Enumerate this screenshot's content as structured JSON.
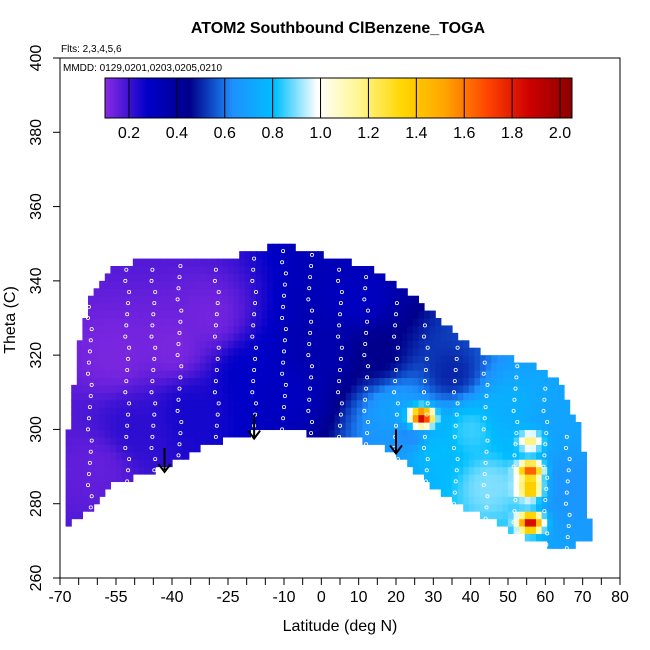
{
  "chart_data": {
    "type": "heatmap",
    "title": "ATOM2 Southbound ClBenzene_TOGA",
    "annotations": [
      "Flts: 2,3,4,5,6",
      "MMDD: 0129,0201,0203,0205,0210"
    ],
    "xlabel": "Latitude (deg N)",
    "ylabel": "Theta (C)",
    "xlim": [
      -70,
      80
    ],
    "ylim": [
      260,
      400
    ],
    "x_ticks": [
      -70,
      -55,
      -40,
      -25,
      -10,
      0,
      10,
      20,
      30,
      40,
      50,
      60,
      70,
      80
    ],
    "x_tick_labels": [
      "-70",
      "-55",
      "-40",
      "-25",
      "-10",
      "0",
      "10",
      "20",
      "30",
      "40",
      "50",
      "60",
      "70",
      "80"
    ],
    "y_ticks": [
      260,
      280,
      300,
      320,
      340,
      360,
      380,
      400
    ],
    "y_tick_labels": [
      "260",
      "280",
      "300",
      "320",
      "340",
      "360",
      "380",
      "400"
    ],
    "colorbar": {
      "range": [
        0.1,
        2.05
      ],
      "ticks": [
        0.2,
        0.4,
        0.6,
        0.8,
        1.0,
        1.2,
        1.4,
        1.6,
        1.8,
        2.0
      ],
      "tick_labels": [
        "0.2",
        "0.4",
        "0.6",
        "0.8",
        "1.0",
        "1.2",
        "1.4",
        "1.6",
        "1.8",
        "2.0"
      ],
      "colors": [
        "#8a2be2",
        "#0000c8",
        "#00008b",
        "#1e90ff",
        "#00bfff",
        "#ffffff",
        "#fff68f",
        "#ffd700",
        "#ffa500",
        "#ff4500",
        "#cd0000",
        "#8b0000"
      ]
    },
    "domain_boundary": {
      "lower": [
        [
          -69,
          274
        ],
        [
          -62,
          278
        ],
        [
          -57,
          285
        ],
        [
          -50,
          287
        ],
        [
          -44,
          289
        ],
        [
          -38,
          292
        ],
        [
          -32,
          295
        ],
        [
          -24,
          298
        ],
        [
          -15,
          300
        ],
        [
          -9,
          301
        ],
        [
          -4,
          299
        ],
        [
          5,
          299
        ],
        [
          15,
          296
        ],
        [
          20,
          293
        ],
        [
          25,
          289
        ],
        [
          32,
          283
        ],
        [
          38,
          279
        ],
        [
          45,
          276
        ],
        [
          52,
          272
        ],
        [
          58,
          270
        ],
        [
          63,
          268
        ],
        [
          68,
          269
        ],
        [
          72,
          271
        ]
      ],
      "upper": [
        [
          72,
          272
        ],
        [
          71,
          290
        ],
        [
          69,
          301
        ],
        [
          64,
          312
        ],
        [
          58,
          317
        ],
        [
          52,
          319
        ],
        [
          45,
          320
        ],
        [
          38,
          324
        ],
        [
          30,
          331
        ],
        [
          22,
          338
        ],
        [
          14,
          343
        ],
        [
          6,
          346
        ],
        [
          -4,
          348
        ],
        [
          -11,
          351
        ],
        [
          -16,
          348
        ],
        [
          -28,
          346
        ],
        [
          -38,
          345
        ],
        [
          -46,
          346
        ],
        [
          -56,
          344
        ],
        [
          -62,
          335
        ],
        [
          -65,
          322
        ],
        [
          -67,
          305
        ],
        [
          -69,
          292
        ]
      ]
    },
    "field_samples": [
      {
        "lat": -60,
        "theta": 290,
        "value": 0.15
      },
      {
        "lat": -55,
        "theta": 320,
        "value": 0.12
      },
      {
        "lat": -40,
        "theta": 322,
        "value": 0.12
      },
      {
        "lat": -30,
        "theta": 330,
        "value": 0.13
      },
      {
        "lat": -50,
        "theta": 300,
        "value": 0.22
      },
      {
        "lat": -35,
        "theta": 305,
        "value": 0.25
      },
      {
        "lat": -20,
        "theta": 315,
        "value": 0.28
      },
      {
        "lat": -10,
        "theta": 310,
        "value": 0.3
      },
      {
        "lat": 0,
        "theta": 320,
        "value": 0.35
      },
      {
        "lat": 10,
        "theta": 335,
        "value": 0.3
      },
      {
        "lat": 15,
        "theta": 320,
        "value": 0.45
      },
      {
        "lat": 20,
        "theta": 305,
        "value": 0.7
      },
      {
        "lat": 25,
        "theta": 300,
        "value": 0.6
      },
      {
        "lat": 30,
        "theta": 295,
        "value": 0.8
      },
      {
        "lat": 40,
        "theta": 300,
        "value": 0.85
      },
      {
        "lat": 45,
        "theta": 285,
        "value": 0.9
      },
      {
        "lat": 50,
        "theta": 305,
        "value": 0.75
      },
      {
        "lat": 60,
        "theta": 300,
        "value": 0.7
      },
      {
        "lat": 65,
        "theta": 285,
        "value": 0.65
      },
      {
        "lat": 35,
        "theta": 315,
        "value": 0.5
      }
    ],
    "hotspots": [
      {
        "lat": 27,
        "theta": 303.5,
        "value": 1.9
      },
      {
        "lat": 56,
        "theta": 289,
        "value": 1.7
      },
      {
        "lat": 56,
        "theta": 284,
        "value": 1.5
      },
      {
        "lat": 56,
        "theta": 275,
        "value": 1.9
      },
      {
        "lat": 56,
        "theta": 297,
        "value": 1.2
      }
    ],
    "arrows": [
      {
        "lat": -42,
        "theta": 295
      },
      {
        "lat": -18,
        "theta": 304
      },
      {
        "lat": 20,
        "theta": 300
      }
    ],
    "sample_tracks": [
      {
        "lat": -62,
        "theta_from": 276,
        "theta_to": 335
      },
      {
        "lat": -52,
        "theta_from": 283,
        "theta_to": 343
      },
      {
        "lat": -45,
        "theta_from": 286,
        "theta_to": 344
      },
      {
        "lat": -38,
        "theta_from": 290,
        "theta_to": 344
      },
      {
        "lat": -28,
        "theta_from": 295,
        "theta_to": 345
      },
      {
        "lat": -18,
        "theta_from": 298,
        "theta_to": 346
      },
      {
        "lat": -10,
        "theta_from": 300,
        "theta_to": 350
      },
      {
        "lat": -3,
        "theta_from": 299,
        "theta_to": 347
      },
      {
        "lat": 5,
        "theta_from": 298,
        "theta_to": 345
      },
      {
        "lat": 12,
        "theta_from": 296,
        "theta_to": 341
      },
      {
        "lat": 20,
        "theta_from": 292,
        "theta_to": 334
      },
      {
        "lat": 28,
        "theta_from": 286,
        "theta_to": 328
      },
      {
        "lat": 36,
        "theta_from": 280,
        "theta_to": 322
      },
      {
        "lat": 44,
        "theta_from": 276,
        "theta_to": 318
      },
      {
        "lat": 52,
        "theta_from": 272,
        "theta_to": 317
      },
      {
        "lat": 60,
        "theta_from": 269,
        "theta_to": 312
      },
      {
        "lat": 66,
        "theta_from": 268,
        "theta_to": 300
      }
    ]
  }
}
